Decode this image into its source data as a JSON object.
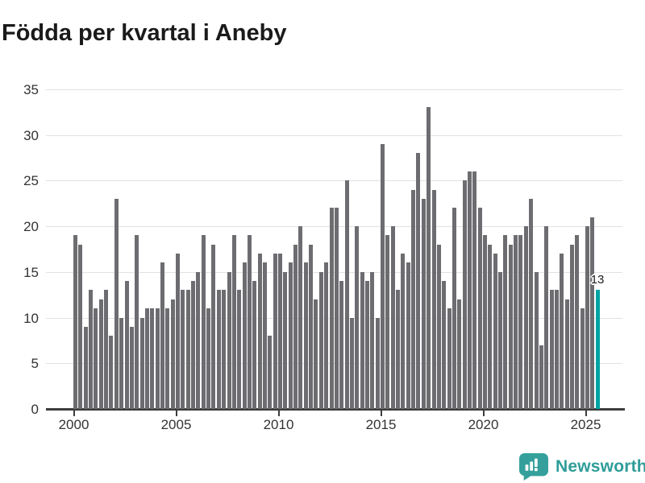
{
  "header": {
    "title": "Födda per kvartal i Aneby"
  },
  "brand": {
    "name": "Newsworthy"
  },
  "chart_data": {
    "type": "bar",
    "title": "Födda per kvartal i Aneby",
    "x_unit": "quarter",
    "start": "2000-Q1",
    "end": "2025-Q3",
    "values": [
      19,
      18,
      9,
      13,
      11,
      12,
      13,
      8,
      23,
      10,
      14,
      9,
      19,
      10,
      11,
      11,
      11,
      16,
      11,
      12,
      17,
      13,
      13,
      14,
      15,
      19,
      11,
      18,
      13,
      13,
      15,
      19,
      13,
      16,
      19,
      14,
      17,
      16,
      8,
      17,
      17,
      15,
      16,
      18,
      20,
      16,
      18,
      12,
      15,
      16,
      22,
      22,
      14,
      25,
      10,
      20,
      15,
      14,
      15,
      10,
      29,
      19,
      20,
      13,
      17,
      16,
      24,
      28,
      23,
      33,
      24,
      18,
      14,
      11,
      22,
      12,
      25,
      26,
      26,
      22,
      19,
      18,
      17,
      15,
      19,
      18,
      19,
      19,
      20,
      23,
      15,
      7,
      20,
      13,
      13,
      17,
      12,
      18,
      19,
      11,
      20,
      21,
      13
    ],
    "highlight": {
      "index": 102,
      "label": "13",
      "color": "#00a3a3",
      "period": "2025-Q3"
    },
    "bar_color": "#6d6d71",
    "ylim": [
      0,
      35
    ],
    "yticks": [
      0,
      5,
      10,
      15,
      20,
      25,
      30,
      35
    ],
    "xticks": [
      "2000",
      "2005",
      "2010",
      "2015",
      "2020",
      "2025"
    ],
    "grid": "horizontal",
    "legend": "none"
  }
}
